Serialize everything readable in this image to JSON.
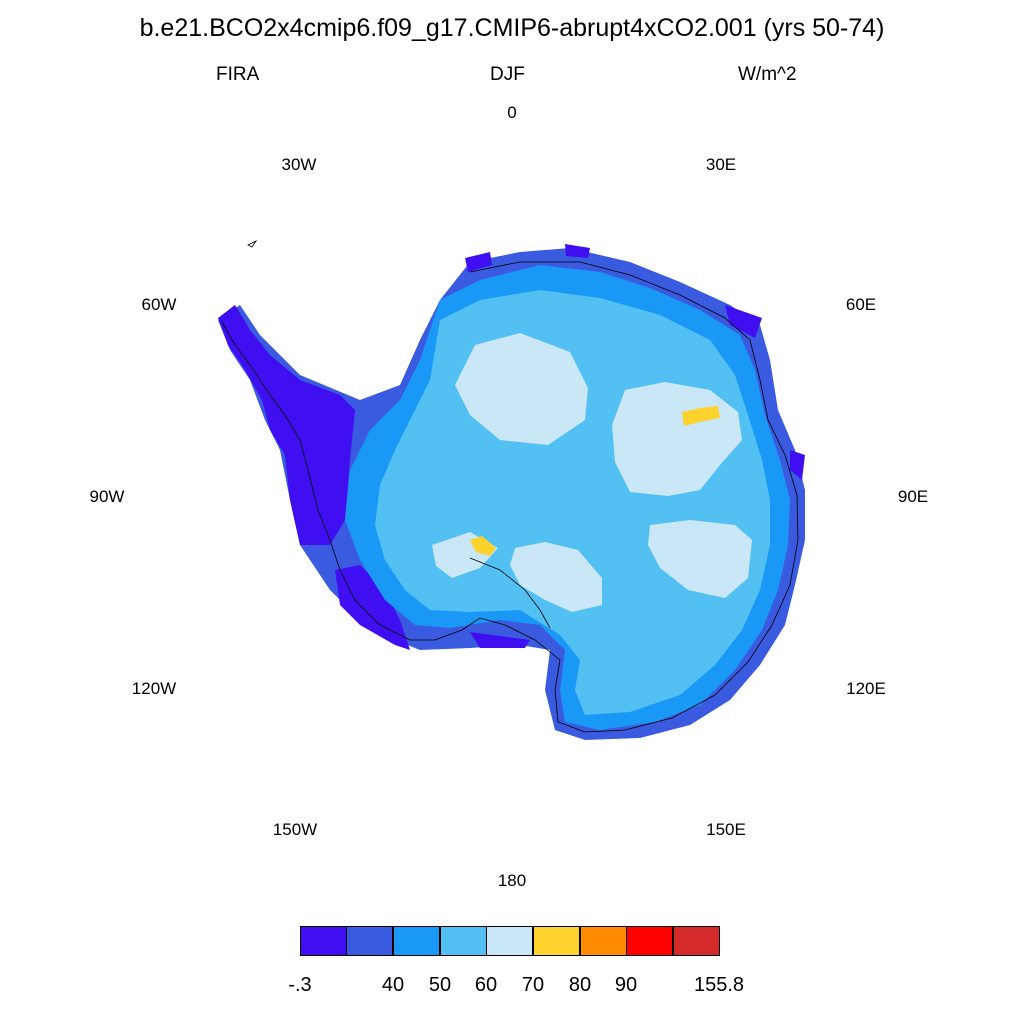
{
  "title": "b.e21.BCO2x4cmip6.f09_g17.CMIP6-abrupt4xCO2.001 (yrs 50-74)",
  "subtitle_left": "FIRA",
  "subtitle_center": "DJF",
  "subtitle_right": "W/m^2",
  "longitude_labels": [
    "0",
    "30E",
    "60E",
    "90E",
    "120E",
    "150E",
    "180",
    "150W",
    "120W",
    "90W",
    "60W",
    "30W"
  ],
  "colorbar": {
    "colors": [
      "#3f0ff2",
      "#3a5be0",
      "#1a98f5",
      "#52c0f3",
      "#c9e7f7",
      "#fed22d",
      "#fe8b02",
      "#fe0000",
      "#d42a2a"
    ],
    "labels": [
      "-.3",
      "40",
      "50",
      "60",
      "70",
      "80",
      "90",
      "155.8"
    ]
  },
  "map": {
    "region": "Antarctica (south polar stereographic)",
    "ocean_color": "#ffffff"
  }
}
